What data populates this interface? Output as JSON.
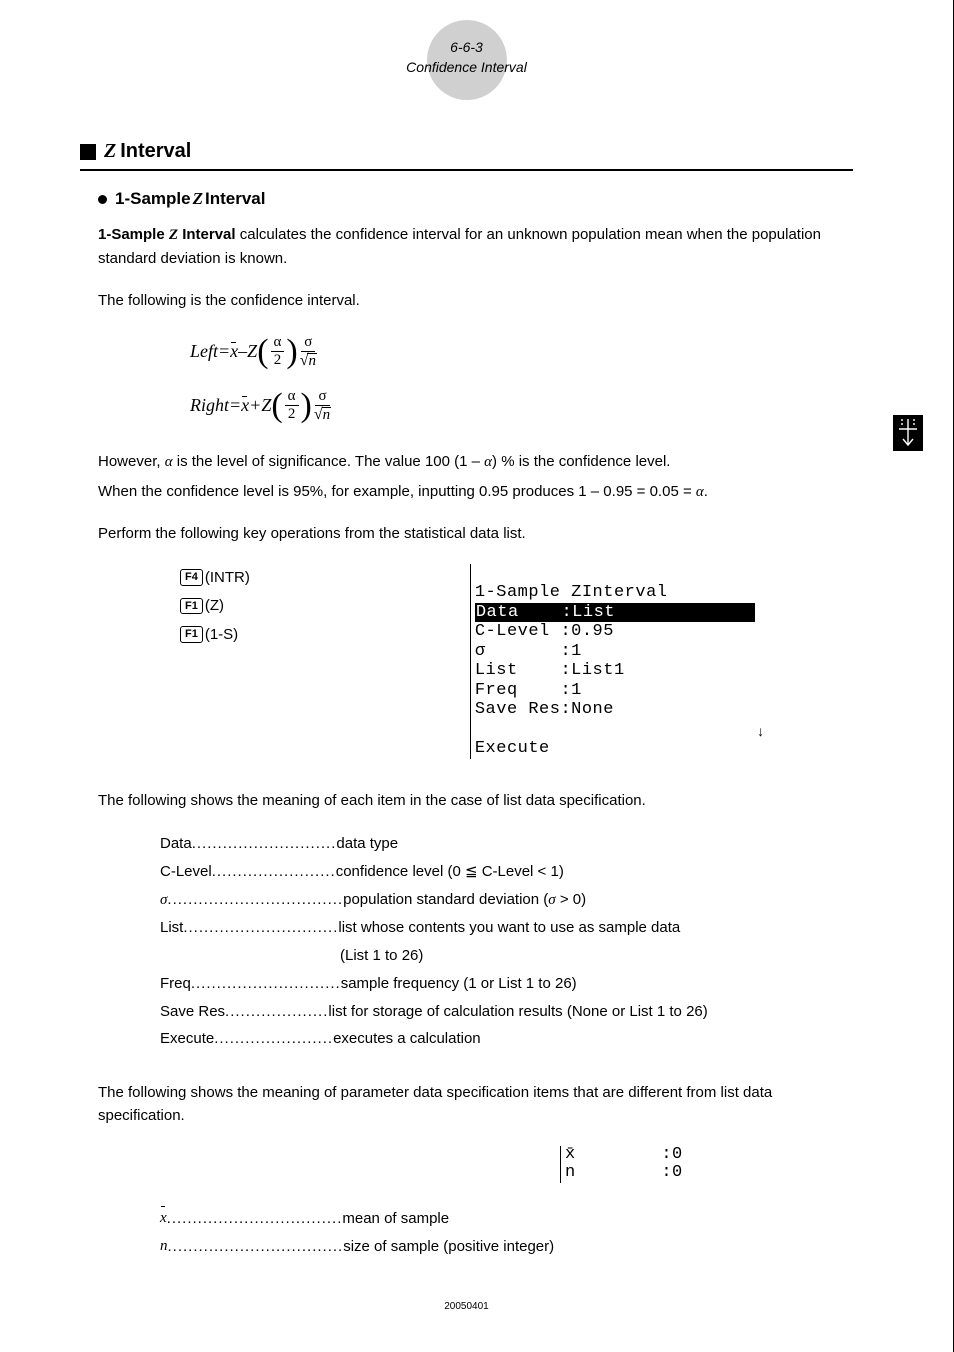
{
  "header": {
    "page_num": "6-6-3",
    "title": "Confidence Interval"
  },
  "section": {
    "letter": "Z",
    "word": "Interval"
  },
  "subsection": {
    "title_pre": "1-Sample ",
    "title_z": "Z",
    "title_post": " Interval"
  },
  "intro": {
    "p1_pre": "1-Sample ",
    "p1_z": "Z",
    "p1_bold": " Interval",
    "p1_rest": " calculates the confidence interval for an unknown population mean when the population standard deviation is known.",
    "p2": "The following is the confidence interval.",
    "p3_pre": "However, ",
    "p3_alpha1": "α",
    "p3_mid": " is the level of significance. The value 100 (1 – ",
    "p3_alpha2": "α",
    "p3_post": ") % is the confidence level.",
    "p4_pre": "When the confidence level is 95%, for example, inputting 0.95 produces 1 – 0.95 = 0.05 = ",
    "p4_alpha": "α",
    "p4_post": ".",
    "p5": "Perform the following key operations from the statistical data list."
  },
  "formula": {
    "left_label": "Left",
    "right_label": "Right",
    "eq": " = ",
    "minus": " – ",
    "plus": " + ",
    "xbar": "x",
    "Z": "Z",
    "alpha": "α",
    "two": "2",
    "sigma": "σ",
    "n": "n"
  },
  "keys": {
    "k1": "F4",
    "k1_label": "(INTR)",
    "k2": "F1",
    "k2_label": "(Z)",
    "k3": "F1",
    "k3_label": "(1-S)"
  },
  "screen1": {
    "l1": "1-Sample ZInterval",
    "l2a": "Data    :",
    "l2b": "List",
    "l3": "C-Level :0.95",
    "l4": "σ       :1",
    "l5": "List    :List1",
    "l6": "Freq    :1",
    "l7": "Save Res:None",
    "l8": "Execute",
    "arrow": "↓"
  },
  "after_screen": "The following shows the meaning of each item in the case of list data specification.",
  "defs": [
    {
      "term": "Data ",
      "dots": "............................",
      "desc": " data type"
    },
    {
      "term": "C-Level ",
      "dots": "........................",
      "desc": " confidence level (0 ≦ C-Level < 1)"
    },
    {
      "term": "σ ",
      "dots": "..................................",
      "desc": " population standard deviation (σ > 0)",
      "sigma": true
    },
    {
      "term": "List ",
      "dots": "..............................",
      "desc": " list whose contents you want to use as sample data",
      "cont": "(List 1 to 26)"
    },
    {
      "term": "Freq ",
      "dots": ".............................",
      "desc": " sample frequency (1 or List 1 to 26)"
    },
    {
      "term": "Save Res ",
      "dots": "....................",
      "desc": " list for storage of calculation results (None or List 1 to 26)"
    },
    {
      "term": "Execute ",
      "dots": ".......................",
      "desc": " executes a calculation"
    }
  ],
  "param_intro": "The following shows the meaning of parameter data specification items that are different from list data specification.",
  "screen2": {
    "l1": "x̄        :0",
    "l2": "n        :0"
  },
  "defs2": [
    {
      "term_sym": "xbar",
      "dots": "..................................",
      "desc": " mean of sample"
    },
    {
      "term_sym": "n",
      "dots": "..................................",
      "desc": " size of sample (positive integer)"
    }
  ],
  "footer": "20050401"
}
